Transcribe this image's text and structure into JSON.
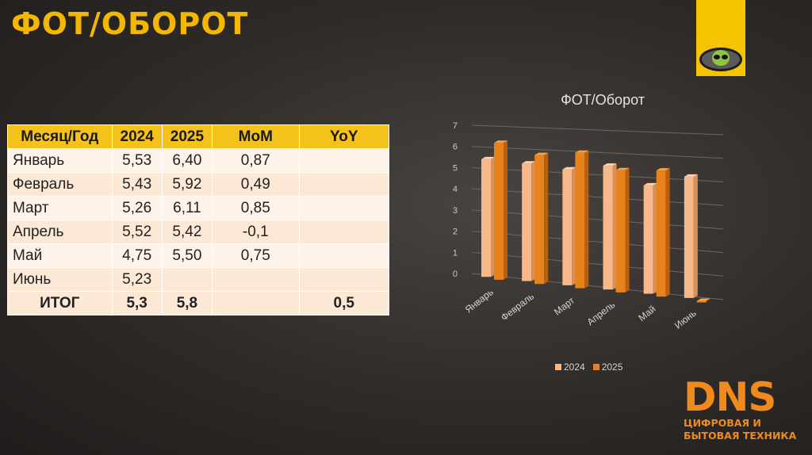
{
  "page_title": "ФОТ/ОБОРОТ",
  "table": {
    "headers": [
      "Месяц/Год",
      "2024",
      "2025",
      "МоМ",
      "YoY"
    ],
    "rows": [
      [
        "Январь",
        "5,53",
        "6,40",
        "0,87",
        ""
      ],
      [
        "Февраль",
        "5,43",
        "5,92",
        "0,49",
        ""
      ],
      [
        "Март",
        "5,26",
        "6,11",
        "0,85",
        ""
      ],
      [
        "Апрель",
        "5,52",
        "5,42",
        "-0,1",
        ""
      ],
      [
        "Май",
        "4,75",
        "5,50",
        "0,75",
        ""
      ],
      [
        "Июнь",
        "5,23",
        "",
        "",
        ""
      ]
    ],
    "total": [
      "ИТОГ",
      "5,3",
      "5,8",
      "",
      "0,5"
    ]
  },
  "chart_data": {
    "type": "bar",
    "title": "ФОТ/Оборот",
    "categories": [
      "Январь",
      "Февраль",
      "Март",
      "Апрель",
      "Май",
      "Июнь"
    ],
    "series": [
      {
        "name": "2024",
        "values": [
          5.53,
          5.43,
          5.26,
          5.52,
          4.75,
          5.23
        ],
        "color": "#f7b98a"
      },
      {
        "name": "2025",
        "values": [
          6.4,
          5.92,
          6.11,
          5.42,
          5.5,
          0
        ],
        "color": "#e8821c"
      }
    ],
    "ylim": [
      0,
      7
    ],
    "yticks": [
      "0",
      "1",
      "2",
      "3",
      "4",
      "5",
      "6",
      "7"
    ],
    "grid": true,
    "legend": "bottom"
  },
  "brand": {
    "name": "DNS",
    "tagline_line1": "ЦИФРОВАЯ И",
    "tagline_line2": "БЫТОВАЯ ТЕХНИКА",
    "color": "#f08a1c"
  }
}
